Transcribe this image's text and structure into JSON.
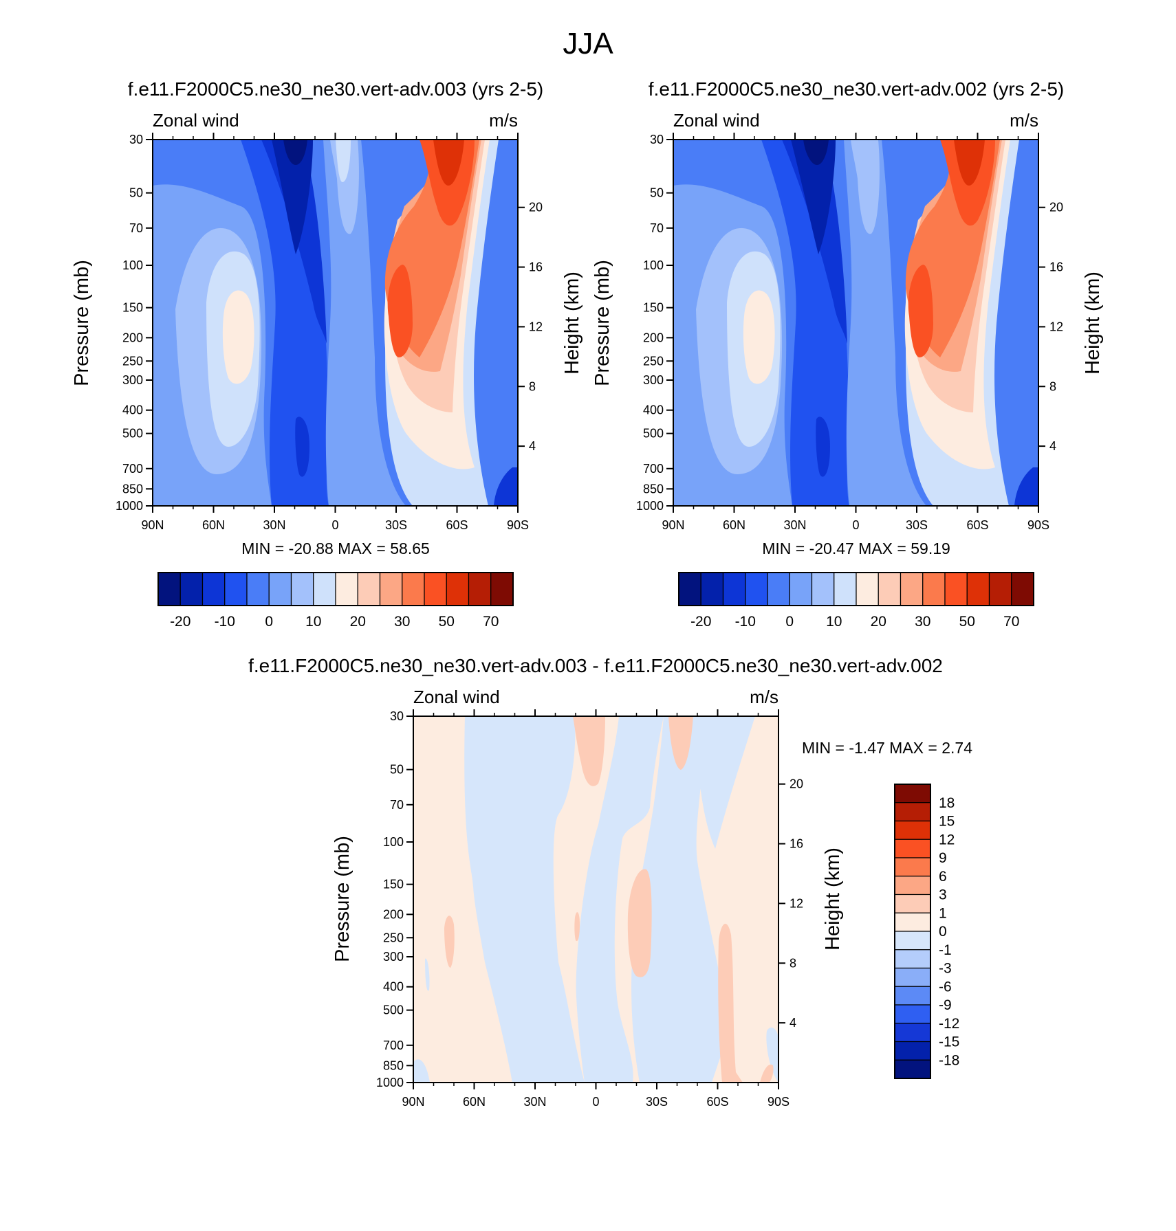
{
  "figure": {
    "title": "JJA"
  },
  "chart_data": [
    {
      "type": "heatmap",
      "title": "f.e11.F2000C5.ne30_ne30.vert-adv.003 (yrs 2-5)",
      "left_label": "Zonal wind",
      "units": "m/s",
      "xlabel": "",
      "ylabel": "Pressure (mb)",
      "ylabel_right": "Height (km)",
      "x_ticks": [
        "90N",
        "60N",
        "30N",
        "0",
        "30S",
        "60S",
        "90S"
      ],
      "y_ticks": [
        "30",
        "50",
        "70",
        "100",
        "150",
        "200",
        "250",
        "300",
        "400",
        "500",
        "700",
        "850",
        "1000"
      ],
      "y_ticks_right": [
        "20",
        "16",
        "12",
        "8",
        "4"
      ],
      "min": -20.88,
      "max": 58.65,
      "minmax": "MIN = -20.88  MAX =  58.65",
      "colorbar_labels": [
        "-20",
        "-10",
        "0",
        "10",
        "20",
        "30",
        "50",
        "70"
      ],
      "colorbar_colors": [
        "#02137e",
        "#0321ab",
        "#0d35d6",
        "#2052f0",
        "#4a7df7",
        "#78a3f9",
        "#a3c1fb",
        "#cfe1fb",
        "#fdece0",
        "#fdccb7",
        "#fca785",
        "#fb7a4c",
        "#fa5123",
        "#de3107",
        "#b51e05",
        "#7e0b03"
      ]
    },
    {
      "type": "heatmap",
      "title": "f.e11.F2000C5.ne30_ne30.vert-adv.002 (yrs 2-5)",
      "left_label": "Zonal wind",
      "units": "m/s",
      "xlabel": "",
      "ylabel": "Pressure (mb)",
      "ylabel_right": "Height (km)",
      "x_ticks": [
        "90N",
        "60N",
        "30N",
        "0",
        "30S",
        "60S",
        "90S"
      ],
      "y_ticks": [
        "30",
        "50",
        "70",
        "100",
        "150",
        "200",
        "250",
        "300",
        "400",
        "500",
        "700",
        "850",
        "1000"
      ],
      "y_ticks_right": [
        "20",
        "16",
        "12",
        "8",
        "4"
      ],
      "min": -20.47,
      "max": 59.19,
      "minmax": "MIN = -20.47  MAX =  59.19",
      "colorbar_labels": [
        "-20",
        "-10",
        "0",
        "10",
        "20",
        "30",
        "50",
        "70"
      ],
      "colorbar_colors": [
        "#02137e",
        "#0321ab",
        "#0d35d6",
        "#2052f0",
        "#4a7df7",
        "#78a3f9",
        "#a3c1fb",
        "#cfe1fb",
        "#fdece0",
        "#fdccb7",
        "#fca785",
        "#fb7a4c",
        "#fa5123",
        "#de3107",
        "#b51e05",
        "#7e0b03"
      ]
    },
    {
      "type": "heatmap",
      "title": "f.e11.F2000C5.ne30_ne30.vert-adv.003 - f.e11.F2000C5.ne30_ne30.vert-adv.002",
      "left_label": "Zonal wind",
      "units": "m/s",
      "xlabel": "",
      "ylabel": "Pressure (mb)",
      "ylabel_right": "Height (km)",
      "x_ticks": [
        "90N",
        "60N",
        "30N",
        "0",
        "30S",
        "60S",
        "90S"
      ],
      "y_ticks": [
        "30",
        "50",
        "70",
        "100",
        "150",
        "200",
        "250",
        "300",
        "400",
        "500",
        "700",
        "850",
        "1000"
      ],
      "y_ticks_right": [
        "20",
        "16",
        "12",
        "8",
        "4"
      ],
      "min": -1.47,
      "max": 2.74,
      "minmax": "MIN =  -1.47  MAX =   2.74",
      "colorbar_labels": [
        "18",
        "15",
        "12",
        "9",
        "6",
        "3",
        "1",
        "0",
        "-1",
        "-3",
        "-6",
        "-9",
        "-12",
        "-15",
        "-18"
      ],
      "colorbar_colors": [
        "#7e0b03",
        "#b51e05",
        "#de3107",
        "#fa5123",
        "#fb7a4c",
        "#fca785",
        "#fdccb7",
        "#fdece0",
        "#d6e6fb",
        "#b4cdfb",
        "#8aaef8",
        "#5c8af6",
        "#2f5ff2",
        "#1538d6",
        "#0321ab",
        "#02137e"
      ]
    }
  ]
}
